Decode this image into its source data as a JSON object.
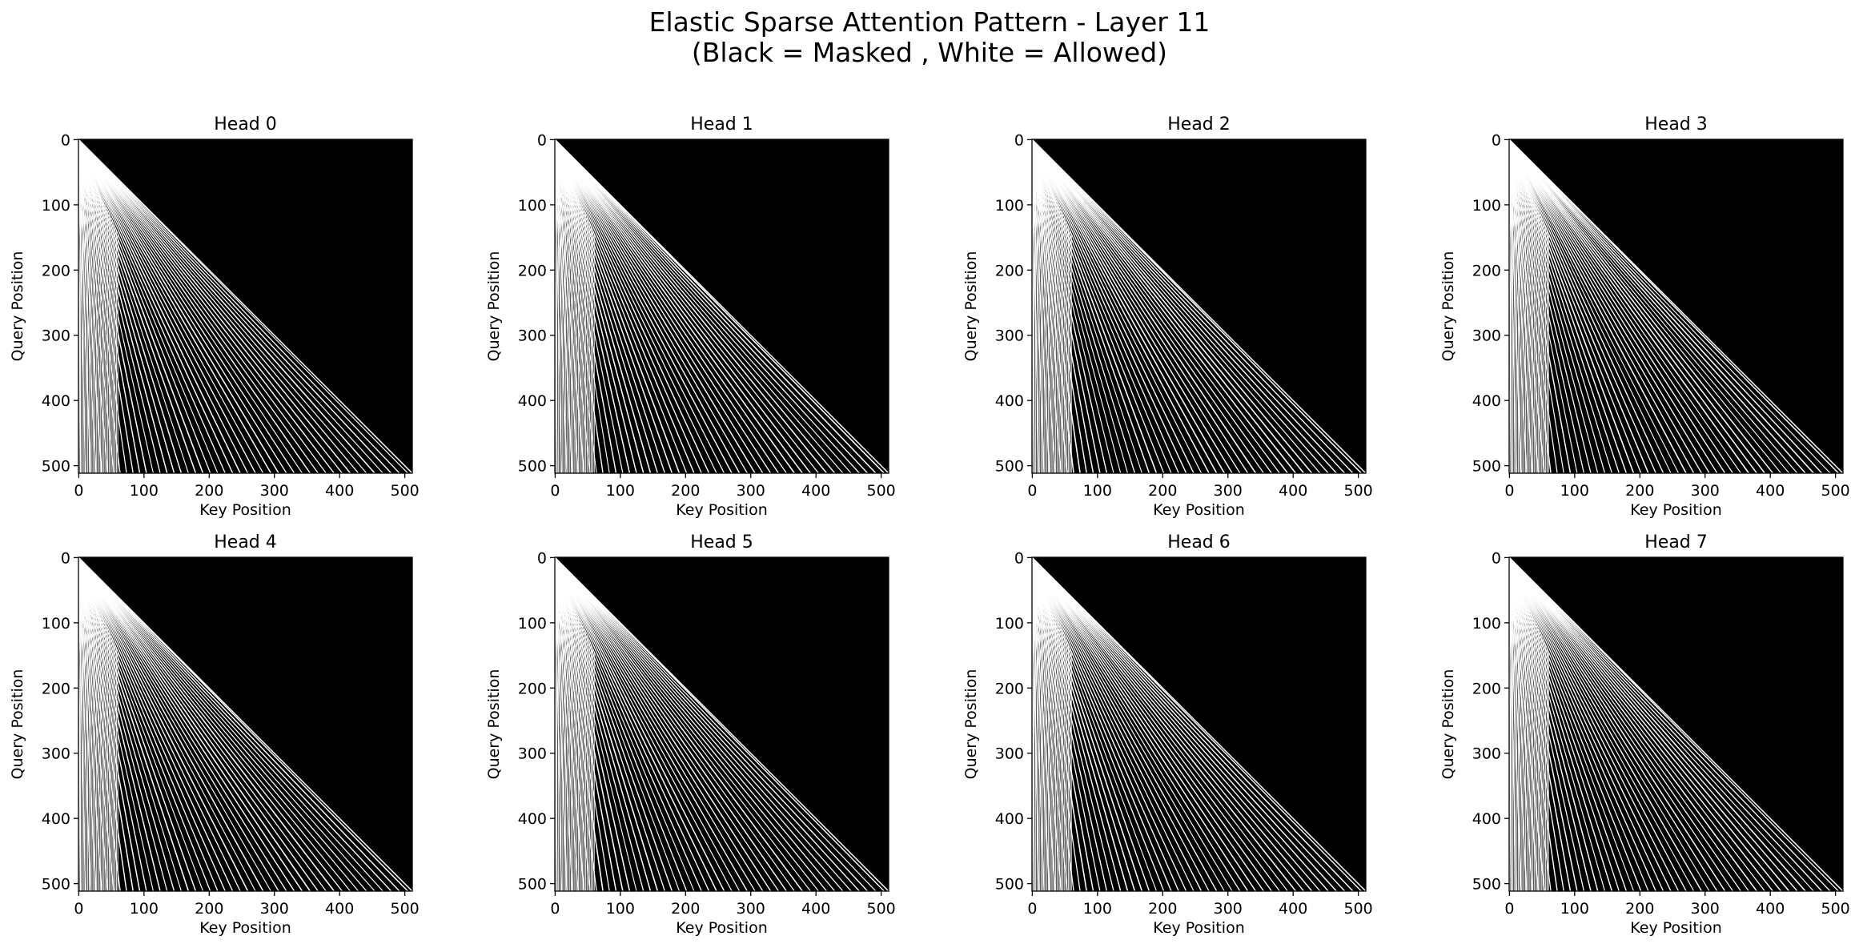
{
  "figure": {
    "title_line1": "Elastic Sparse Attention Pattern - Layer 11",
    "title_line2": "(Black = Masked , White = Allowed)"
  },
  "chart_data": [
    {
      "type": "heatmap",
      "title": "Head 0",
      "xlabel": "Key Position",
      "ylabel": "Query Position",
      "size": 512,
      "xlim": [
        0,
        511
      ],
      "ylim": [
        511,
        0
      ],
      "xticks": [
        0,
        100,
        200,
        300,
        400,
        500
      ],
      "yticks": [
        0,
        100,
        200,
        300,
        400,
        500
      ],
      "colormap": {
        "masked": "#000000",
        "allowed": "#ffffff"
      }
    },
    {
      "type": "heatmap",
      "title": "Head 1",
      "xlabel": "Key Position",
      "ylabel": "Query Position",
      "size": 512,
      "xlim": [
        0,
        511
      ],
      "ylim": [
        511,
        0
      ],
      "xticks": [
        0,
        100,
        200,
        300,
        400,
        500
      ],
      "yticks": [
        0,
        100,
        200,
        300,
        400,
        500
      ],
      "colormap": {
        "masked": "#000000",
        "allowed": "#ffffff"
      }
    },
    {
      "type": "heatmap",
      "title": "Head 2",
      "xlabel": "Key Position",
      "ylabel": "Query Position",
      "size": 512,
      "xlim": [
        0,
        511
      ],
      "ylim": [
        511,
        0
      ],
      "xticks": [
        0,
        100,
        200,
        300,
        400,
        500
      ],
      "yticks": [
        0,
        100,
        200,
        300,
        400,
        500
      ],
      "colormap": {
        "masked": "#000000",
        "allowed": "#ffffff"
      }
    },
    {
      "type": "heatmap",
      "title": "Head 3",
      "xlabel": "Key Position",
      "ylabel": "Query Position",
      "size": 512,
      "xlim": [
        0,
        511
      ],
      "ylim": [
        511,
        0
      ],
      "xticks": [
        0,
        100,
        200,
        300,
        400,
        500
      ],
      "yticks": [
        0,
        100,
        200,
        300,
        400,
        500
      ],
      "colormap": {
        "masked": "#000000",
        "allowed": "#ffffff"
      }
    },
    {
      "type": "heatmap",
      "title": "Head 4",
      "xlabel": "Key Position",
      "ylabel": "Query Position",
      "size": 512,
      "xlim": [
        0,
        511
      ],
      "ylim": [
        511,
        0
      ],
      "xticks": [
        0,
        100,
        200,
        300,
        400,
        500
      ],
      "yticks": [
        0,
        100,
        200,
        300,
        400,
        500
      ],
      "colormap": {
        "masked": "#000000",
        "allowed": "#ffffff"
      }
    },
    {
      "type": "heatmap",
      "title": "Head 5",
      "xlabel": "Key Position",
      "ylabel": "Query Position",
      "size": 512,
      "xlim": [
        0,
        511
      ],
      "ylim": [
        511,
        0
      ],
      "xticks": [
        0,
        100,
        200,
        300,
        400,
        500
      ],
      "yticks": [
        0,
        100,
        200,
        300,
        400,
        500
      ],
      "colormap": {
        "masked": "#000000",
        "allowed": "#ffffff"
      }
    },
    {
      "type": "heatmap",
      "title": "Head 6",
      "xlabel": "Key Position",
      "ylabel": "Query Position",
      "size": 512,
      "xlim": [
        0,
        511
      ],
      "ylim": [
        511,
        0
      ],
      "xticks": [
        0,
        100,
        200,
        300,
        400,
        500
      ],
      "yticks": [
        0,
        100,
        200,
        300,
        400,
        500
      ],
      "colormap": {
        "masked": "#000000",
        "allowed": "#ffffff"
      }
    },
    {
      "type": "heatmap",
      "title": "Head 7",
      "xlabel": "Key Position",
      "ylabel": "Query Position",
      "size": 512,
      "xlim": [
        0,
        511
      ],
      "ylim": [
        511,
        0
      ],
      "xticks": [
        0,
        100,
        200,
        300,
        400,
        500
      ],
      "yticks": [
        0,
        100,
        200,
        300,
        400,
        500
      ],
      "colormap": {
        "masked": "#000000",
        "allowed": "#ffffff"
      }
    }
  ]
}
